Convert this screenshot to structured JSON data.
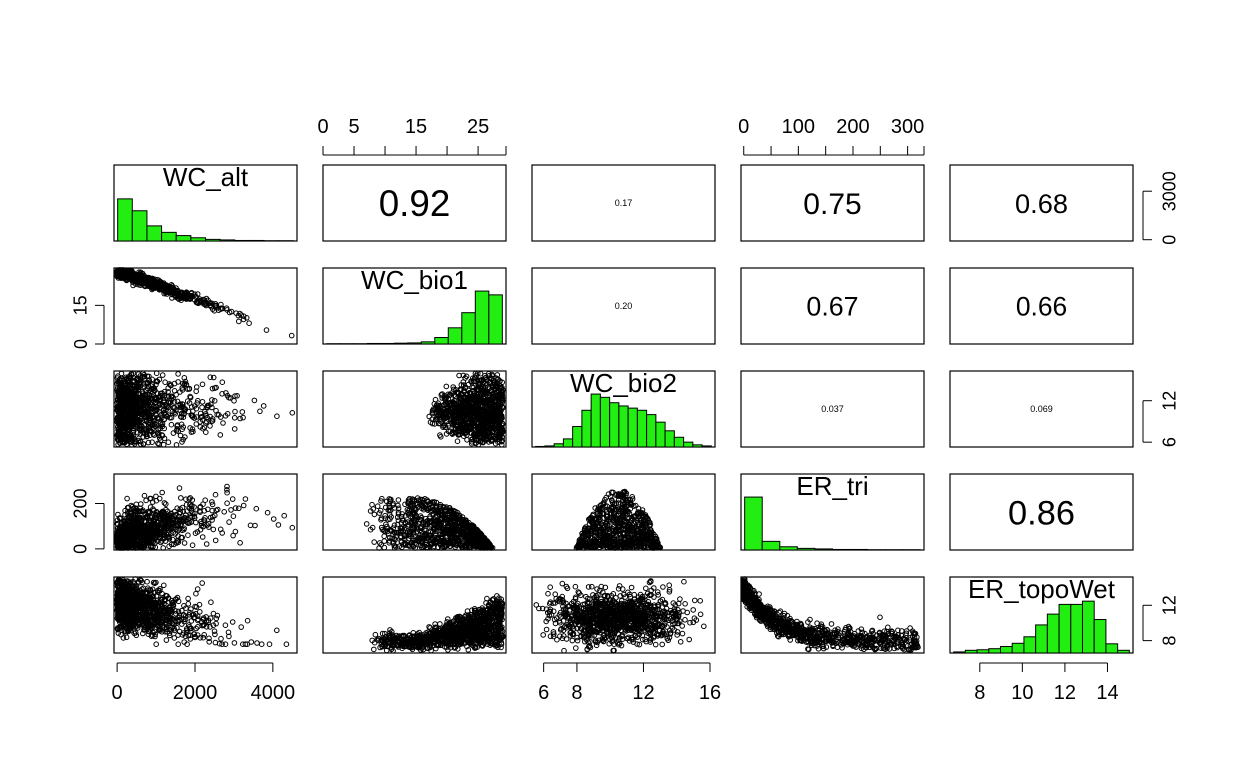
{
  "chart_data": {
    "type": "scatter-matrix",
    "title": "",
    "variables": [
      {
        "name": "WC_alt",
        "range": [
          -80,
          4620
        ],
        "ticks": [
          0,
          2000,
          4000
        ]
      },
      {
        "name": "WC_bio1",
        "range": [
          0,
          29.5
        ],
        "ticks": [
          0,
          5,
          15,
          25
        ],
        "axis_ticks": [
          0,
          15
        ]
      },
      {
        "name": "WC_bio2",
        "range": [
          5.3,
          16.3
        ],
        "ticks": [
          6,
          8,
          12,
          16
        ],
        "axis_ticks": [
          6,
          12
        ]
      },
      {
        "name": "ER_tri",
        "range": [
          -5,
          330
        ],
        "ticks": [
          0,
          100,
          200,
          300
        ],
        "axis_ticks": [
          0,
          200
        ]
      },
      {
        "name": "ER_topoWet",
        "range": [
          6.6,
          15.2
        ],
        "ticks": [
          8,
          10,
          12,
          14
        ],
        "axis_ticks": [
          8,
          12
        ]
      }
    ],
    "correlations": [
      {
        "row": 0,
        "col": 1,
        "value": "0.92"
      },
      {
        "row": 0,
        "col": 2,
        "value": "0.17"
      },
      {
        "row": 0,
        "col": 3,
        "value": "0.75"
      },
      {
        "row": 0,
        "col": 4,
        "value": "0.68"
      },
      {
        "row": 1,
        "col": 2,
        "value": "0.20"
      },
      {
        "row": 1,
        "col": 3,
        "value": "0.67"
      },
      {
        "row": 1,
        "col": 4,
        "value": "0.66"
      },
      {
        "row": 2,
        "col": 3,
        "value": "0.037"
      },
      {
        "row": 2,
        "col": 4,
        "value": "0.069"
      },
      {
        "row": 3,
        "col": 4,
        "value": "0.86"
      }
    ],
    "histograms": [
      {
        "variable": "WC_alt",
        "relative_heights": [
          0.78,
          0.56,
          0.28,
          0.16,
          0.1,
          0.06,
          0.03,
          0.02,
          0.01,
          0.01,
          0.005,
          0.005
        ]
      },
      {
        "variable": "WC_bio1",
        "relative_heights": [
          0.005,
          0.005,
          0.005,
          0.01,
          0.01,
          0.015,
          0.02,
          0.04,
          0.12,
          0.3,
          0.58,
          0.98,
          0.91
        ]
      },
      {
        "variable": "WC_bio2",
        "relative_heights": [
          0.01,
          0.02,
          0.06,
          0.15,
          0.38,
          0.68,
          0.98,
          0.92,
          0.82,
          0.76,
          0.72,
          0.68,
          0.6,
          0.46,
          0.3,
          0.18,
          0.09,
          0.04,
          0.02
        ]
      },
      {
        "variable": "ER_tri",
        "relative_heights": [
          0.98,
          0.16,
          0.06,
          0.03,
          0.02,
          0.01,
          0.01,
          0.005,
          0.005,
          0.005
        ]
      },
      {
        "variable": "ER_topoWet",
        "relative_heights": [
          0.02,
          0.05,
          0.06,
          0.08,
          0.12,
          0.18,
          0.3,
          0.52,
          0.72,
          0.9,
          0.9,
          0.96,
          0.62,
          0.17,
          0.05
        ]
      }
    ],
    "marker_color": "#000000",
    "histogram_fill": "#22ee11",
    "grid": false
  }
}
